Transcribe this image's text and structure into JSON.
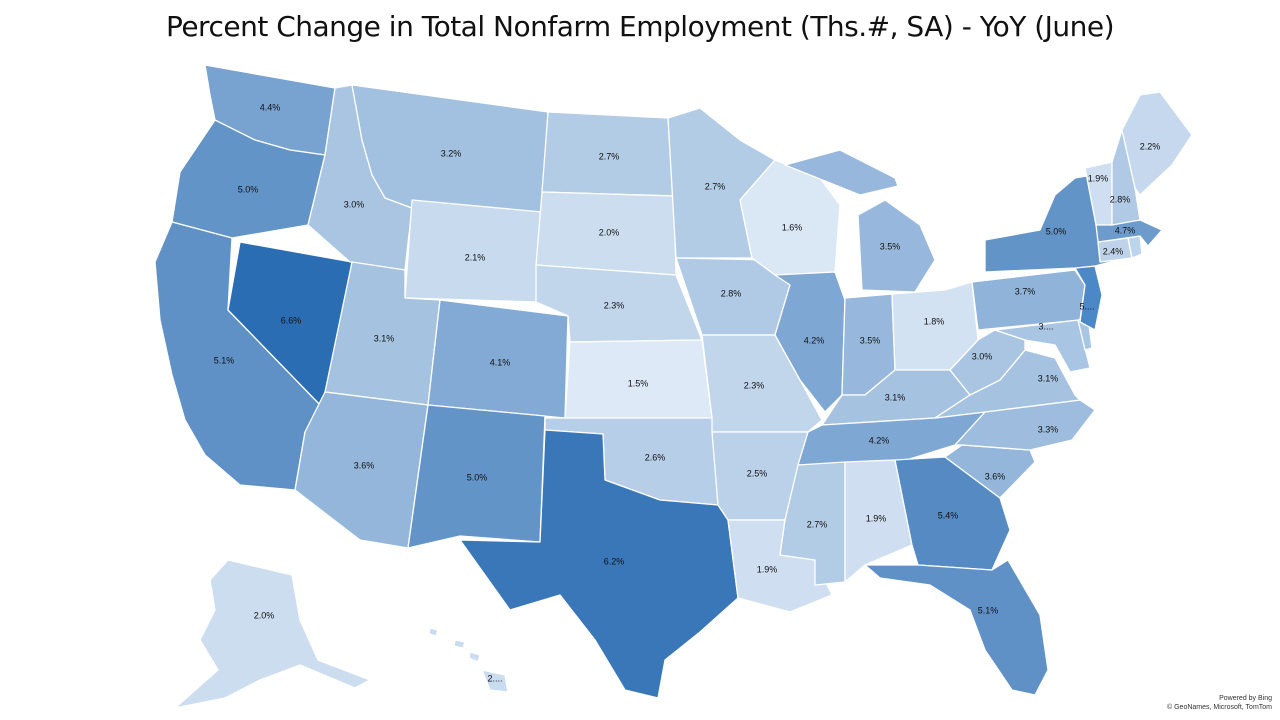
{
  "title": "Percent Change in Total Nonfarm Employment (Ths.#, SA) - YoY (June)",
  "credit": {
    "line1": "Powered by Bing",
    "line2": "© GeoNames, Microsoft, TomTom"
  },
  "color_scale": {
    "low": "#dde9f6",
    "high": "#2b6db3",
    "min": 1.5,
    "max": 6.6
  },
  "states": [
    {
      "id": "WA",
      "label": "4.4%",
      "value": 4.4
    },
    {
      "id": "OR",
      "label": "5.0%",
      "value": 5.0
    },
    {
      "id": "CA",
      "label": "5.1%",
      "value": 5.1
    },
    {
      "id": "NV",
      "label": "6.6%",
      "value": 6.6
    },
    {
      "id": "ID",
      "label": "3.0%",
      "value": 3.0
    },
    {
      "id": "MT",
      "label": "3.2%",
      "value": 3.2
    },
    {
      "id": "WY",
      "label": "2.1%",
      "value": 2.1
    },
    {
      "id": "UT",
      "label": "3.1%",
      "value": 3.1
    },
    {
      "id": "AZ",
      "label": "3.6%",
      "value": 3.6
    },
    {
      "id": "CO",
      "label": "4.1%",
      "value": 4.1
    },
    {
      "id": "NM",
      "label": "5.0%",
      "value": 5.0
    },
    {
      "id": "ND",
      "label": "2.7%",
      "value": 2.7
    },
    {
      "id": "SD",
      "label": "2.0%",
      "value": 2.0
    },
    {
      "id": "NE",
      "label": "2.3%",
      "value": 2.3
    },
    {
      "id": "KS",
      "label": "1.5%",
      "value": 1.5
    },
    {
      "id": "OK",
      "label": "2.6%",
      "value": 2.6
    },
    {
      "id": "TX",
      "label": "6.2%",
      "value": 6.2
    },
    {
      "id": "MN",
      "label": "2.7%",
      "value": 2.7
    },
    {
      "id": "IA",
      "label": "2.8%",
      "value": 2.8
    },
    {
      "id": "MO",
      "label": "2.3%",
      "value": 2.3
    },
    {
      "id": "AR",
      "label": "2.5%",
      "value": 2.5
    },
    {
      "id": "LA",
      "label": "1.9%",
      "value": 1.9
    },
    {
      "id": "WI",
      "label": "1.6%",
      "value": 1.6
    },
    {
      "id": "IL",
      "label": "4.2%",
      "value": 4.2
    },
    {
      "id": "MI",
      "label": "3.5%",
      "value": 3.5
    },
    {
      "id": "IN",
      "label": "3.5%",
      "value": 3.5
    },
    {
      "id": "OH",
      "label": "1.8%",
      "value": 1.8
    },
    {
      "id": "KY",
      "label": "3.1%",
      "value": 3.1
    },
    {
      "id": "TN",
      "label": "4.2%",
      "value": 4.2
    },
    {
      "id": "MS",
      "label": "2.7%",
      "value": 2.7
    },
    {
      "id": "AL",
      "label": "1.9%",
      "value": 1.9
    },
    {
      "id": "GA",
      "label": "5.4%",
      "value": 5.4
    },
    {
      "id": "FL",
      "label": "5.1%",
      "value": 5.1
    },
    {
      "id": "SC",
      "label": "3.6%",
      "value": 3.6
    },
    {
      "id": "NC",
      "label": "3.3%",
      "value": 3.3
    },
    {
      "id": "VA",
      "label": "3.1%",
      "value": 3.1
    },
    {
      "id": "WV",
      "label": "3.0%",
      "value": 3.0
    },
    {
      "id": "MD",
      "label": "3....",
      "value": null
    },
    {
      "id": "DE",
      "label": "",
      "value": null
    },
    {
      "id": "PA",
      "label": "3.7%",
      "value": 3.7
    },
    {
      "id": "NJ",
      "label": "5....",
      "value": null
    },
    {
      "id": "NY",
      "label": "5.0%",
      "value": 5.0
    },
    {
      "id": "CT",
      "label": "2.4%",
      "value": 2.4
    },
    {
      "id": "RI",
      "label": "",
      "value": null
    },
    {
      "id": "MA",
      "label": "4.7%",
      "value": 4.7
    },
    {
      "id": "VT",
      "label": "1.9%",
      "value": 1.9
    },
    {
      "id": "NH",
      "label": "2.8%",
      "value": 2.8
    },
    {
      "id": "ME",
      "label": "2.2%",
      "value": 2.2
    },
    {
      "id": "AK",
      "label": "2.0%",
      "value": 2.0
    },
    {
      "id": "HI",
      "label": "2....",
      "value": null
    }
  ]
}
